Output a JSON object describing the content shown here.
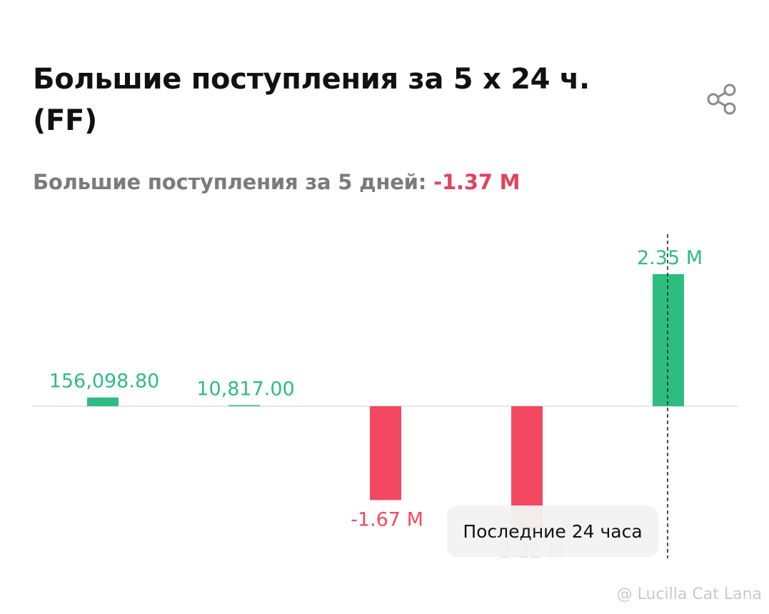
{
  "header": {
    "title": "Большие поступления за 5 x 24 ч. (FF)",
    "share_icon": "share-icon"
  },
  "summary": {
    "label": "Большие поступления за 5 дней:",
    "value": "-1.37 M"
  },
  "tooltip": {
    "text": "Последние 24 часа"
  },
  "watermark": {
    "text": "@ Lucilla Cat Lana"
  },
  "colors": {
    "positive": "#2dbd80",
    "negative": "#f34860",
    "baseline": "#e6e6e6"
  },
  "chart_data": {
    "type": "bar",
    "title": "Большие поступления за 5 x 24 ч. (FF)",
    "values": [
      156098.8,
      10817.0,
      -1670000,
      -2220000,
      2350000
    ],
    "labels": [
      "156,098.80",
      "10,817.00",
      "-1.67 M",
      "-2.22 M",
      "2.35 M"
    ],
    "highlight_index": 4,
    "annotation": "Последние 24 часа",
    "grid": false
  }
}
